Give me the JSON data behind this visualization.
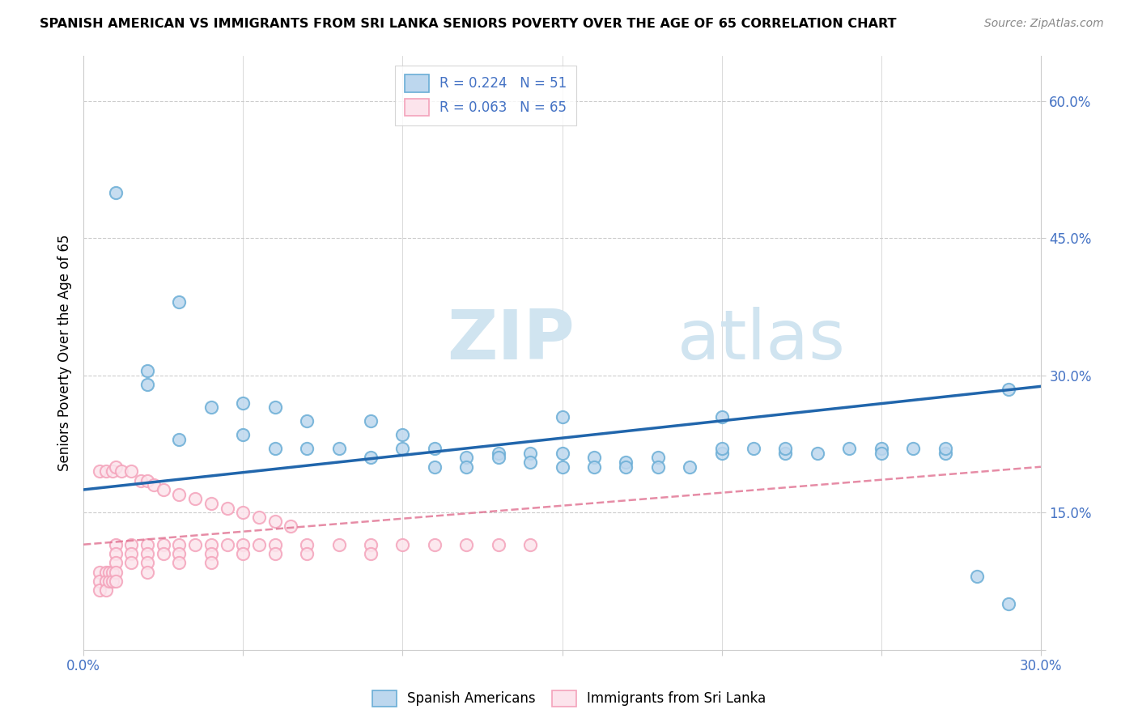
{
  "title": "SPANISH AMERICAN VS IMMIGRANTS FROM SRI LANKA SENIORS POVERTY OVER THE AGE OF 65 CORRELATION CHART",
  "source": "Source: ZipAtlas.com",
  "ylabel": "Seniors Poverty Over the Age of 65",
  "xlim": [
    0.0,
    0.3
  ],
  "ylim": [
    0.0,
    0.65
  ],
  "x_ticks": [
    0.0,
    0.05,
    0.1,
    0.15,
    0.2,
    0.25,
    0.3
  ],
  "x_tick_labels": [
    "0.0%",
    "",
    "",
    "",
    "",
    "",
    "30.0%"
  ],
  "y_ticks_right": [
    0.0,
    0.15,
    0.3,
    0.45,
    0.6
  ],
  "y_tick_labels_right": [
    "",
    "15.0%",
    "30.0%",
    "45.0%",
    "60.0%"
  ],
  "blue_color": "#6baed6",
  "blue_fill": "#bdd7ee",
  "pink_color": "#f4a3bb",
  "pink_fill": "#fce4ec",
  "trend_blue": "#2166ac",
  "trend_pink": "#e07090",
  "watermark_color": "#d0e4f0",
  "legend_R_blue": "R = 0.224",
  "legend_N_blue": "N = 51",
  "legend_R_pink": "R = 0.063",
  "legend_N_pink": "N = 65",
  "blue_scatter_x": [
    0.02,
    0.02,
    0.03,
    0.04,
    0.05,
    0.05,
    0.06,
    0.06,
    0.07,
    0.07,
    0.08,
    0.09,
    0.09,
    0.1,
    0.1,
    0.11,
    0.11,
    0.12,
    0.12,
    0.13,
    0.13,
    0.14,
    0.14,
    0.15,
    0.15,
    0.16,
    0.16,
    0.17,
    0.17,
    0.18,
    0.18,
    0.19,
    0.2,
    0.2,
    0.21,
    0.22,
    0.22,
    0.23,
    0.24,
    0.25,
    0.25,
    0.26,
    0.27,
    0.27,
    0.28,
    0.29,
    0.01,
    0.03,
    0.15,
    0.2,
    0.29
  ],
  "blue_scatter_y": [
    0.305,
    0.29,
    0.23,
    0.265,
    0.27,
    0.235,
    0.22,
    0.265,
    0.22,
    0.25,
    0.22,
    0.21,
    0.25,
    0.235,
    0.22,
    0.22,
    0.2,
    0.21,
    0.2,
    0.215,
    0.21,
    0.215,
    0.205,
    0.215,
    0.2,
    0.21,
    0.2,
    0.205,
    0.2,
    0.21,
    0.2,
    0.2,
    0.215,
    0.22,
    0.22,
    0.215,
    0.22,
    0.215,
    0.22,
    0.22,
    0.215,
    0.22,
    0.215,
    0.22,
    0.08,
    0.05,
    0.5,
    0.38,
    0.255,
    0.255,
    0.285
  ],
  "pink_scatter_x": [
    0.005,
    0.005,
    0.005,
    0.007,
    0.007,
    0.007,
    0.008,
    0.008,
    0.009,
    0.009,
    0.01,
    0.01,
    0.01,
    0.01,
    0.01,
    0.015,
    0.015,
    0.015,
    0.02,
    0.02,
    0.02,
    0.02,
    0.025,
    0.025,
    0.03,
    0.03,
    0.03,
    0.035,
    0.04,
    0.04,
    0.04,
    0.045,
    0.05,
    0.05,
    0.055,
    0.06,
    0.06,
    0.07,
    0.07,
    0.08,
    0.09,
    0.09,
    0.1,
    0.11,
    0.12,
    0.13,
    0.14,
    0.005,
    0.007,
    0.009,
    0.01,
    0.012,
    0.015,
    0.018,
    0.02,
    0.022,
    0.025,
    0.03,
    0.035,
    0.04,
    0.045,
    0.05,
    0.055,
    0.06,
    0.065
  ],
  "pink_scatter_y": [
    0.085,
    0.075,
    0.065,
    0.085,
    0.075,
    0.065,
    0.085,
    0.075,
    0.085,
    0.075,
    0.115,
    0.105,
    0.095,
    0.085,
    0.075,
    0.115,
    0.105,
    0.095,
    0.115,
    0.105,
    0.095,
    0.085,
    0.115,
    0.105,
    0.115,
    0.105,
    0.095,
    0.115,
    0.115,
    0.105,
    0.095,
    0.115,
    0.115,
    0.105,
    0.115,
    0.115,
    0.105,
    0.115,
    0.105,
    0.115,
    0.115,
    0.105,
    0.115,
    0.115,
    0.115,
    0.115,
    0.115,
    0.195,
    0.195,
    0.195,
    0.2,
    0.195,
    0.195,
    0.185,
    0.185,
    0.18,
    0.175,
    0.17,
    0.165,
    0.16,
    0.155,
    0.15,
    0.145,
    0.14,
    0.135
  ]
}
